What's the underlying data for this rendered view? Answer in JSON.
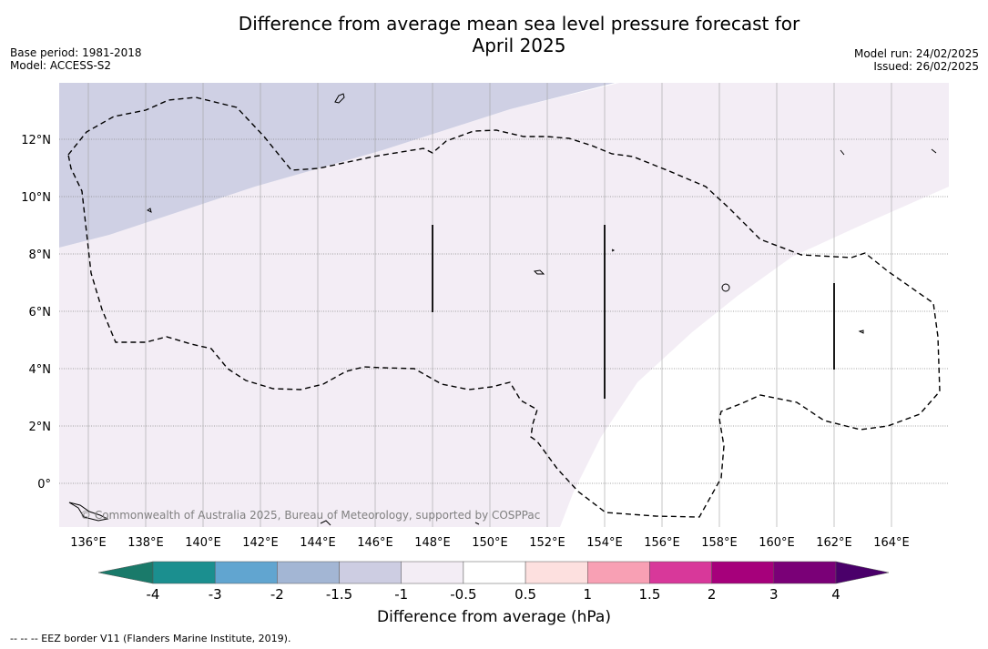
{
  "title_line1": "Difference from average mean sea level pressure forecast for",
  "title_line2": "April 2025",
  "base_period": "Base period: 1981-2018",
  "model": "Model: ACCESS-S2",
  "model_run": "Model run: 24/02/2025",
  "issued": "Issued: 26/02/2025",
  "copyright": "© Commonwealth of Australia 2025, Bureau of Meteorology, supported by COSPPac",
  "colorbar_title": "Difference from average (hPa)",
  "footnote": "--  --  -- EEZ border V11 (Flanders Marine Institute, 2019).",
  "map": {
    "lon_labels": [
      "136°E",
      "138°E",
      "140°E",
      "142°E",
      "144°E",
      "146°E",
      "148°E",
      "150°E",
      "152°E",
      "154°E",
      "156°E",
      "158°E",
      "160°E",
      "162°E",
      "164°E"
    ],
    "lat_labels": [
      "12°N",
      "10°N",
      "8°N",
      "6°N",
      "4°N",
      "2°N",
      "0°"
    ],
    "lon_range": [
      135,
      166
    ],
    "lat_range": [
      -1.5,
      14
    ]
  },
  "colorbar": {
    "tick_labels": [
      "-4",
      "-3",
      "-2",
      "-1.5",
      "-1",
      "-0.5",
      "0.5",
      "1",
      "1.5",
      "2",
      "3",
      "4"
    ],
    "colors": [
      "#1b8f8f",
      "#61a5d0",
      "#a3b6d4",
      "#cdcde2",
      "#f3edf5",
      "#ffffff",
      "#fde0df",
      "#f8a0b4",
      "#d8389a",
      "#a6007b",
      "#7a0077"
    ],
    "extend_low_color": "#1a7a6a",
    "extend_high_color": "#4a006a"
  },
  "legend_colors": {
    "band_minus_1_5_to_minus_1": "#cdcde2",
    "band_minus_1_to_minus_0_5": "#f3edf5"
  }
}
